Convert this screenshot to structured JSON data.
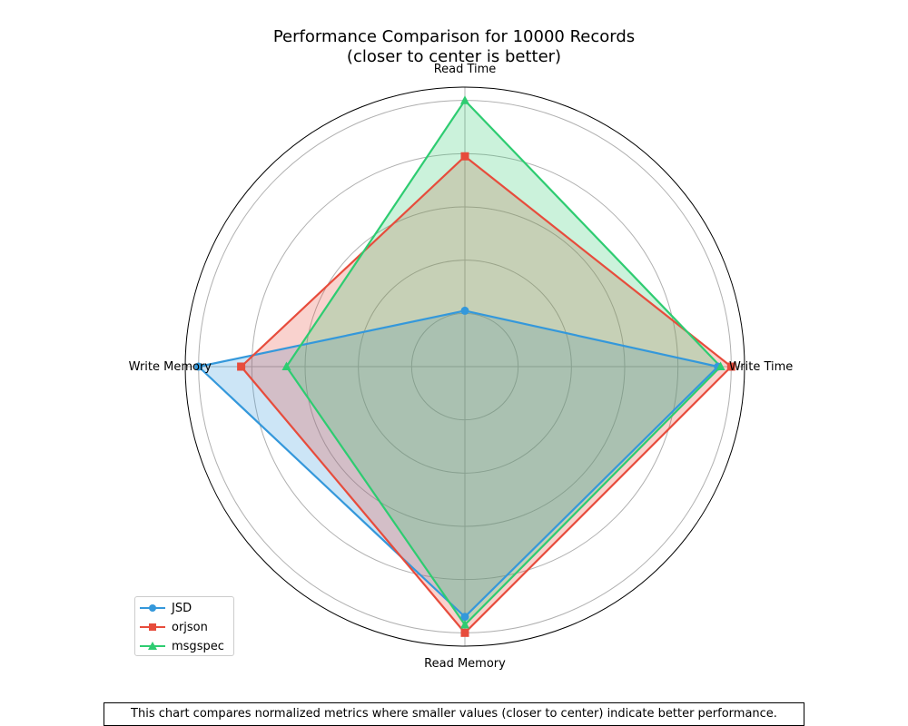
{
  "chart_data": {
    "type": "radar",
    "title": "Performance Comparison for 10000 Records",
    "subtitle": "(closer to center is better)",
    "axes": [
      "Read Time",
      "Write Time",
      "Read Memory",
      "Write Memory"
    ],
    "rlim": [
      0,
      1.05
    ],
    "rticks": [
      0.2,
      0.4,
      0.6,
      0.8,
      1.0
    ],
    "grid": true,
    "legend_position": "lower-left",
    "series": [
      {
        "name": "JSD",
        "color": "#3498db",
        "marker": "circle",
        "values": [
          0.21,
          0.95,
          0.94,
          1.0
        ]
      },
      {
        "name": "orjson",
        "color": "#e74c3c",
        "marker": "square",
        "values": [
          0.79,
          1.0,
          1.0,
          0.84
        ]
      },
      {
        "name": "msgspec",
        "color": "#2ecc71",
        "marker": "triangle",
        "values": [
          1.0,
          0.96,
          0.97,
          0.67
        ]
      }
    ],
    "caption": "This chart compares normalized metrics where smaller values (closer to center) indicate better performance."
  }
}
